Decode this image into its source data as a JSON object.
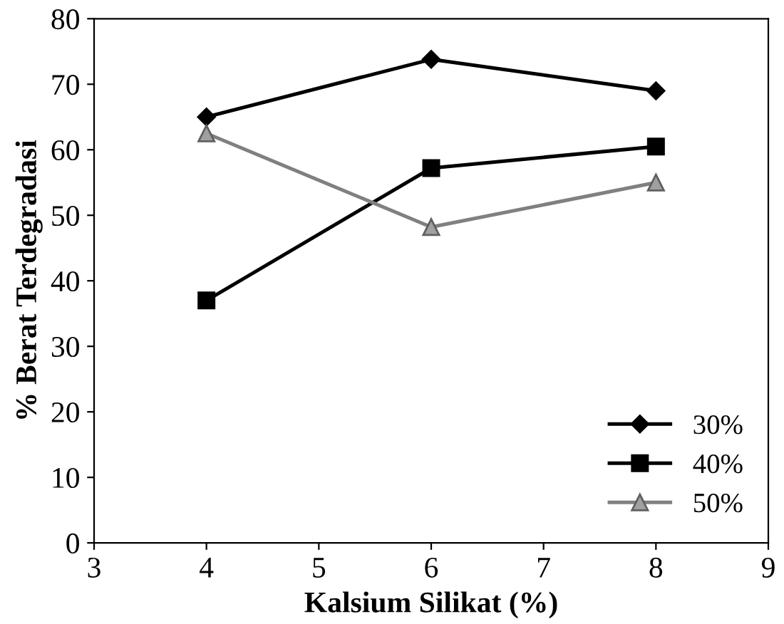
{
  "chart_data": {
    "type": "line",
    "xlabel": "Kalsium Silikat (%)",
    "ylabel": "% Berat Terdegradasi",
    "x": [
      4,
      6,
      8
    ],
    "series": [
      {
        "name": "30%",
        "color": "#000000",
        "marker": "diamond",
        "values": [
          65,
          73.8,
          69
        ]
      },
      {
        "name": "40%",
        "color": "#000000",
        "marker": "square",
        "values": [
          37,
          57.2,
          60.5
        ]
      },
      {
        "name": "50%",
        "color": "#808080",
        "marker": "triangle",
        "values": [
          62.5,
          48.2,
          55
        ]
      }
    ],
    "xlim": [
      3,
      9
    ],
    "xticks": [
      3,
      4,
      5,
      6,
      7,
      8,
      9
    ],
    "ylim": [
      0,
      80
    ],
    "yticks": [
      0,
      10,
      20,
      30,
      40,
      50,
      60,
      70,
      80
    ],
    "grid": false,
    "legend": "bottom right",
    "line_style": "solid"
  }
}
